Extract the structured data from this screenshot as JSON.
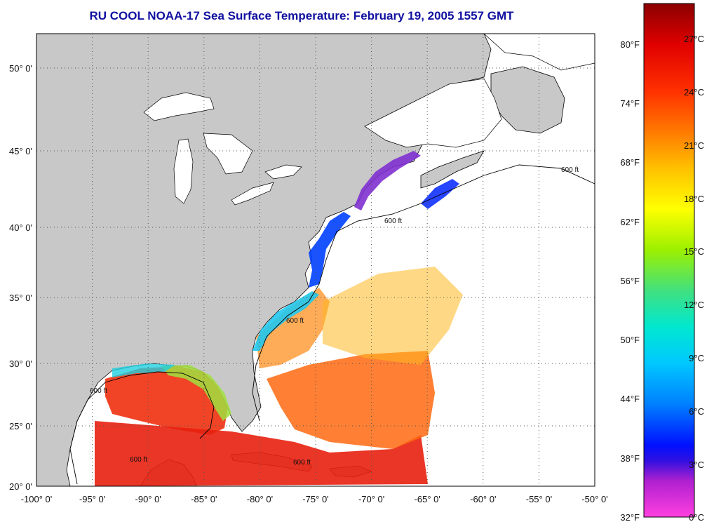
{
  "title": "RU COOL  NOAA-17  Sea Surface Temperature:  February 19, 2005 1557 GMT",
  "lat_ticks": [
    {
      "label": "50° 0'",
      "lat": 50
    },
    {
      "label": "45° 0'",
      "lat": 45
    },
    {
      "label": "40° 0'",
      "lat": 40
    },
    {
      "label": "35° 0'",
      "lat": 35
    },
    {
      "label": "30° 0'",
      "lat": 30
    },
    {
      "label": "25° 0'",
      "lat": 25
    },
    {
      "label": "20° 0'",
      "lat": 20
    }
  ],
  "lon_ticks": [
    {
      "label": "-100° 0'",
      "lon": -100
    },
    {
      "label": "-95° 0'",
      "lon": -95
    },
    {
      "label": "-90° 0'",
      "lon": -90
    },
    {
      "label": "-85° 0'",
      "lon": -85
    },
    {
      "label": "-80° 0'",
      "lon": -80
    },
    {
      "label": "-75° 0'",
      "lon": -75
    },
    {
      "label": "-70° 0'",
      "lon": -70
    },
    {
      "label": "-65° 0'",
      "lon": -65
    },
    {
      "label": "-60° 0'",
      "lon": -60
    },
    {
      "label": "-55° 0'",
      "lon": -55
    },
    {
      "label": "-50° 0'",
      "lon": -50
    }
  ],
  "colorbar": {
    "celsius": [
      "27°C",
      "24°C",
      "21°C",
      "18°C",
      "15°C",
      "12°C",
      "9°C",
      "6°C",
      "3°C",
      "0°C"
    ],
    "fahrenheit": [
      "80°F",
      "74°F",
      "68°F",
      "62°F",
      "56°F",
      "50°F",
      "44°F",
      "38°F",
      "32°F"
    ],
    "colors": [
      "#8b0000",
      "#e00000",
      "#ff3000",
      "#ff7a00",
      "#ffc000",
      "#ffff00",
      "#9cf000",
      "#40e080",
      "#00e8d0",
      "#00c8ff",
      "#0080ff",
      "#0010ff",
      "#6020c0",
      "#b020d0",
      "#ff40e0"
    ]
  },
  "isobath_label": "600 ft",
  "colors": {
    "land": "#c8c8c8",
    "ocean": "#ffffff",
    "title": "#1010a0",
    "grid": "#555555"
  }
}
